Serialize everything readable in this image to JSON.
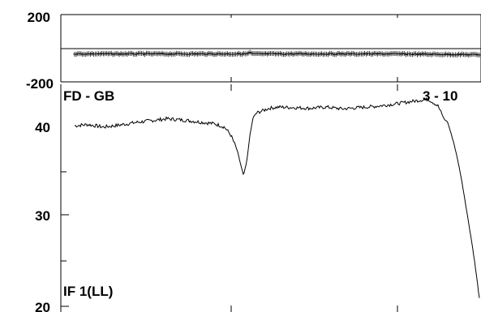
{
  "chart_data": [
    {
      "type": "scatter",
      "panel": "phase",
      "yticks": [
        "200",
        "-200"
      ],
      "ylim": [
        -200,
        200
      ],
      "grid": false,
      "note": "phase points lie near zero across the whole band with a small bump near channel 55",
      "series": [
        {
          "x": [
            0,
            55,
            56,
            57,
            100,
            128
          ],
          "y": [
            0,
            0,
            7,
            0,
            0,
            -5
          ]
        }
      ]
    },
    {
      "type": "line",
      "panel": "amplitude",
      "labels": {
        "station_pair": "FD - GB",
        "scan": "3 - 10",
        "if_label": "IF 1(LL)"
      },
      "yticks": [
        "40",
        "30",
        "20"
      ],
      "ylim": [
        20,
        45
      ],
      "x_range": [
        1,
        128
      ],
      "grid": false,
      "series": [
        {
          "x": [
            1,
            5,
            10,
            15,
            20,
            25,
            30,
            35,
            40,
            45,
            48,
            50,
            52,
            53,
            54,
            55,
            56,
            57,
            58,
            60,
            62,
            65,
            70,
            75,
            80,
            85,
            90,
            95,
            100,
            105,
            110,
            112,
            115,
            117,
            118,
            120,
            122,
            124,
            126,
            128
          ],
          "y": [
            40.1,
            40.3,
            39.9,
            40.2,
            40.6,
            40.9,
            41.2,
            41.0,
            40.7,
            40.4,
            39.9,
            38.7,
            36.5,
            34.7,
            33.1,
            34.9,
            38.6,
            41.4,
            42.1,
            42.5,
            42.9,
            43.1,
            43.0,
            42.9,
            43.1,
            42.8,
            43.0,
            43.2,
            43.5,
            43.9,
            44.3,
            44.4,
            43.3,
            41.1,
            40.7,
            37.5,
            33.5,
            28.9,
            24.8,
            20.6
          ]
        }
      ]
    }
  ]
}
